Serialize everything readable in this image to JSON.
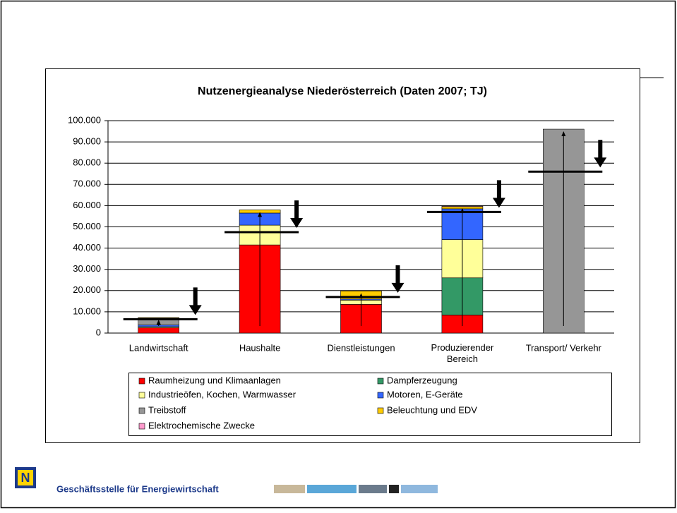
{
  "chart_data": {
    "type": "stacked_bar",
    "title": "Nutzenergieanalyse Niederösterreich (Daten 2007; TJ)",
    "categories": [
      "Landwirtschaft",
      "Haushalte",
      "Dienstleistungen",
      "Produzierender Bereich",
      "Transport/ Verkehr"
    ],
    "series": [
      {
        "name": "Raumheizung und Klimaanlagen",
        "color": "#ff0000",
        "values": [
          2500,
          41500,
          13500,
          8500,
          0
        ]
      },
      {
        "name": "Dampferzeugung",
        "color": "#339966",
        "values": [
          0,
          0,
          0,
          17500,
          0
        ]
      },
      {
        "name": "Industrieöfen, Kochen, Warmwasser",
        "color": "#ffff99",
        "values": [
          500,
          9300,
          2000,
          18000,
          0
        ]
      },
      {
        "name": "Motoren, E-Geräte",
        "color": "#3366ff",
        "values": [
          800,
          5700,
          500,
          14500,
          0
        ]
      },
      {
        "name": "Treibstoff",
        "color": "#969696",
        "values": [
          3200,
          0,
          0,
          0,
          96000
        ]
      },
      {
        "name": "Beleuchtung und EDV",
        "color": "#ffcc00",
        "values": [
          300,
          1500,
          3800,
          1000,
          0
        ]
      },
      {
        "name": "Elektrochemische Zwecke",
        "color": "#ff99cc",
        "values": [
          0,
          0,
          0,
          300,
          0
        ]
      }
    ],
    "reference_lines": [
      6500,
      47500,
      17000,
      57000,
      76000
    ],
    "ylim": [
      0,
      100000
    ],
    "yticks": [
      0,
      {
        "value": 10000,
        "label": "10.000"
      },
      {
        "value": 20000,
        "label": "20.000"
      },
      {
        "value": 30000,
        "label": "30.000"
      },
      {
        "value": 40000,
        "label": "40.000"
      },
      {
        "value": 50000,
        "label": "50.000"
      },
      {
        "value": 60000,
        "label": "60.000"
      },
      {
        "value": 70000,
        "label": "70.000"
      },
      {
        "value": 80000,
        "label": "80.000"
      },
      {
        "value": 90000,
        "label": "90.000"
      },
      {
        "value": 100000,
        "label": "100.000"
      }
    ],
    "grid": true
  },
  "footer": {
    "text": "Geschäftsstelle für Energiewirtschaft"
  }
}
